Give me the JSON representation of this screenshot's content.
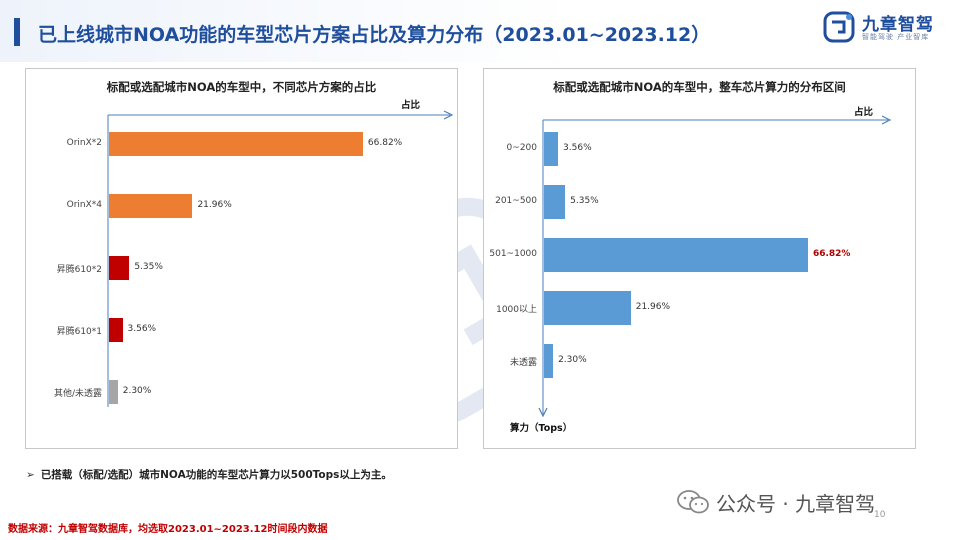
{
  "header": {
    "title": "已上线城市NOA功能的车型芯片方案占比及算力分布（2023.01~2023.12）",
    "logo_text": "九章智驾",
    "logo_subtitle": "智能驾驶 产业智库"
  },
  "left_chart": {
    "title": "标配或选配城市NOA的车型中，不同芯片方案的占比",
    "axis_label": "占比",
    "chart_data": {
      "type": "bar",
      "orientation": "horizontal",
      "categories": [
        "OrinX*2",
        "OrinX*4",
        "昇腾610*2",
        "昇腾610*1",
        "其他/未透露"
      ],
      "values": [
        66.82,
        21.96,
        5.35,
        3.56,
        2.3
      ],
      "labels": [
        "66.82%",
        "21.96%",
        "5.35%",
        "3.56%",
        "2.30%"
      ],
      "colors": [
        "#ed7d31",
        "#ed7d31",
        "#c00000",
        "#c00000",
        "#a6a6a6"
      ],
      "xlabel": "占比",
      "xlim": [
        0,
        100
      ]
    }
  },
  "right_chart": {
    "title": "标配或选配城市NOA的车型中，整车芯片算力的分布区间",
    "x_axis_label": "占比",
    "y_axis_label": "算力（Tops）",
    "chart_data": {
      "type": "bar",
      "orientation": "horizontal",
      "categories": [
        "0~200",
        "201~500",
        "501~1000",
        "1000以上",
        "未透露"
      ],
      "values": [
        3.56,
        5.35,
        66.82,
        21.96,
        2.3
      ],
      "labels": [
        "3.56%",
        "5.35%",
        "66.82%",
        "21.96%",
        "2.30%"
      ],
      "highlight_index": 2,
      "bar_color": "#5b9bd5",
      "highlight_label_color": "#b00000",
      "xlabel": "占比",
      "ylabel": "算力（Tops）",
      "xlim": [
        0,
        100
      ]
    }
  },
  "note": "已搭载（标配/选配）城市NOA功能的车型芯片算力以500Tops以上为主。",
  "source": "数据来源：九章智驾数据库，均选取2023.01~2023.12时间段内数据",
  "wechat_label": "公众号 · 九章智驾",
  "page_number": "10"
}
